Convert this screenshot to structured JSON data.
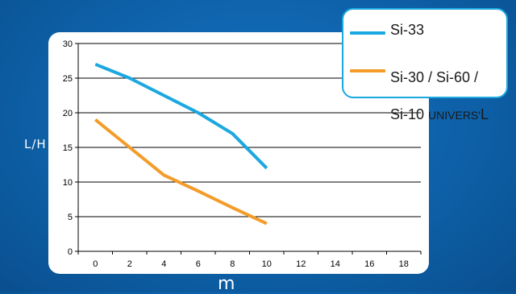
{
  "chart_data": {
    "type": "line",
    "title": "",
    "xlabel": "m",
    "ylabel": "L/H",
    "xlim": [
      -1,
      19
    ],
    "ylim": [
      0,
      30
    ],
    "xticks": [
      0,
      2,
      4,
      6,
      8,
      10,
      12,
      14,
      16,
      18
    ],
    "yticks": [
      0,
      5,
      10,
      15,
      20,
      25,
      30
    ],
    "grid": "horizontal",
    "legend_position": "top-right",
    "series": [
      {
        "name": "Si-33",
        "color": "#1ba8e0",
        "points": [
          [
            0,
            27
          ],
          [
            2,
            25
          ],
          [
            4,
            22.5
          ],
          [
            6,
            20
          ],
          [
            8,
            17
          ],
          [
            10,
            12
          ]
        ]
      },
      {
        "name": "Si-30 / Si-60 / Si-10 UNIVERS'L",
        "color": "#f39c2a",
        "points": [
          [
            0,
            19
          ],
          [
            2,
            15
          ],
          [
            4,
            11
          ],
          [
            6,
            8.7
          ],
          [
            8,
            6.3
          ],
          [
            10,
            4
          ]
        ]
      }
    ]
  },
  "legend": {
    "item1_label": "Si-33",
    "item2_line1": "Si-30 / Si-60 /",
    "item2_line2_prefix": "Si-10 ",
    "item2_line2_small": "UNIVERS'",
    "item2_line2_suffix": "L"
  },
  "colors": {
    "background": "#0d5fa6",
    "plot_area": "#ffffff",
    "legend_border": "#1ba8e0"
  }
}
